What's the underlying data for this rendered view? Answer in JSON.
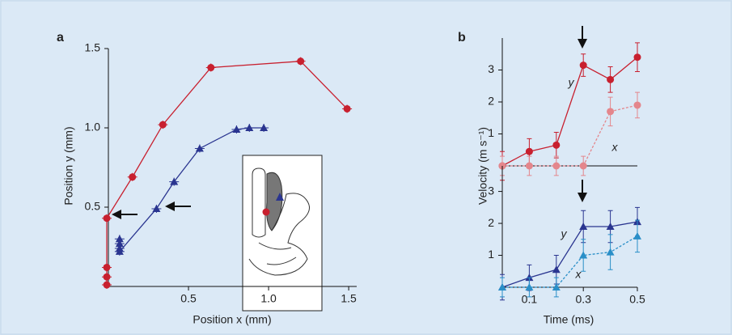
{
  "chart_data": [
    {
      "type": "line",
      "panel_label": "a",
      "xlabel": "Position x (mm)",
      "ylabel": "Position y (mm)",
      "xlim": [
        0,
        1.55
      ],
      "ylim": [
        0,
        1.5
      ],
      "xticks": [
        0.5,
        {
          "value": 1,
          "label": "1.0"
        },
        1.5
      ],
      "yticks": [
        0.5,
        {
          "value": 1,
          "label": "1.0"
        },
        1.5
      ],
      "series": [
        {
          "color": "#c8202f",
          "marker": "circle",
          "x": [
            -0.01,
            -0.01,
            -0.01,
            -0.01,
            0.15,
            0.34,
            0.64,
            1.2,
            1.49
          ],
          "values": [
            0.01,
            0.06,
            0.12,
            0.43,
            0.69,
            1.02,
            1.38,
            1.42,
            1.12
          ]
        },
        {
          "color": "#2a3590",
          "marker": "triangle",
          "x": [
            0.07,
            0.07,
            0.07,
            0.07,
            0.3,
            0.41,
            0.57,
            0.8,
            0.88,
            0.97
          ],
          "values": [
            0.3,
            0.27,
            0.24,
            0.22,
            0.49,
            0.66,
            0.87,
            0.99,
            1.0,
            1.0
          ]
        }
      ]
    },
    {
      "type": "line",
      "panel_label": "b",
      "ylabel": "Velocity (m s⁻¹)",
      "x": [
        0,
        0.1,
        0.2,
        0.3,
        0.4,
        0.5
      ],
      "xlim": [
        0,
        0.5
      ],
      "ylim": [
        0,
        4
      ],
      "yticks": [
        1,
        2,
        3
      ],
      "series": [
        {
          "name": "y",
          "color": "#c8202f",
          "marker": "circle",
          "dashed": false,
          "values": [
            0,
            0.45,
            0.65,
            3.15,
            2.7,
            3.4
          ],
          "errors": [
            0.45,
            0.4,
            0.4,
            0.35,
            0.4,
            0.45
          ]
        },
        {
          "name": "x",
          "color": "#e4868c",
          "marker": "circle",
          "dashed": true,
          "values": [
            0,
            0,
            0,
            0,
            1.7,
            1.9
          ],
          "errors": [
            0.3,
            0.3,
            0.3,
            0.3,
            0.45,
            0.4
          ]
        }
      ]
    },
    {
      "type": "line",
      "xlabel": "Time (ms)",
      "x": [
        0,
        0.1,
        0.2,
        0.3,
        0.4,
        0.5
      ],
      "xlim": [
        0,
        0.5
      ],
      "ylim": [
        0,
        3.8
      ],
      "xticks": [
        0.1,
        0.3,
        0.5
      ],
      "yticks": [
        1,
        2,
        3
      ],
      "series": [
        {
          "name": "y",
          "color": "#2a3590",
          "marker": "triangle",
          "dashed": false,
          "values": [
            0,
            0.3,
            0.55,
            1.9,
            1.9,
            2.05
          ],
          "errors": [
            0.4,
            0.4,
            0.45,
            0.5,
            0.5,
            0.45
          ]
        },
        {
          "name": "x",
          "color": "#2a8fc8",
          "marker": "triangle",
          "dashed": true,
          "values": [
            0,
            0,
            0,
            1.0,
            1.1,
            1.6
          ],
          "errors": [
            0.3,
            0.3,
            0.3,
            0.5,
            0.55,
            0.5
          ]
        }
      ]
    }
  ]
}
